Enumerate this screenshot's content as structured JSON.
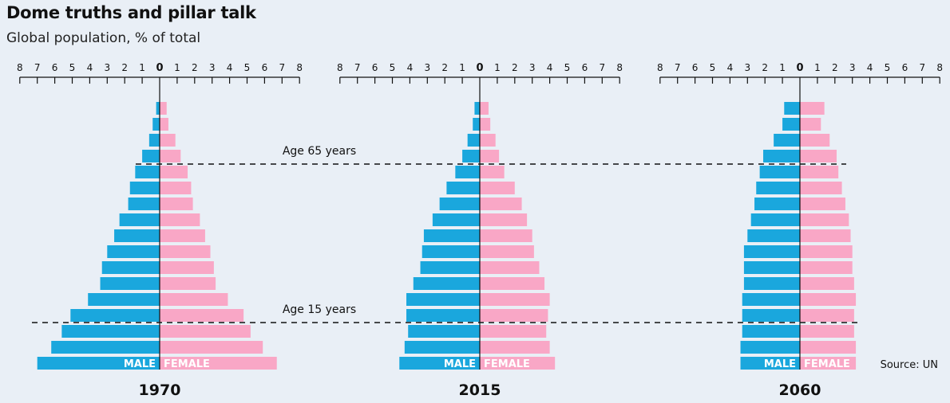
{
  "title": "Dome truths and pillar talk",
  "subtitle": "Global population, % of total",
  "source": "Source: UN",
  "annotations": [
    "Age 65 years",
    "Age 15 years"
  ],
  "colors": {
    "male": "#1aa7dd",
    "female": "#f9a7c6",
    "background": "#e9eff6"
  },
  "chart_data": [
    {
      "type": "bar",
      "orientation": "horizontal",
      "label": "1970",
      "ticks": [
        "8",
        "7",
        "6",
        "5",
        "4",
        "3",
        "2",
        "1",
        "0",
        "1",
        "2",
        "3",
        "4",
        "5",
        "6",
        "7",
        "8"
      ],
      "xlim": [
        -8,
        8
      ],
      "sex_labels": [
        "MALE",
        "FEMALE"
      ],
      "order": "top-to-bottom, oldest to youngest",
      "male": [
        0.2,
        0.4,
        0.6,
        1.0,
        1.4,
        1.7,
        1.8,
        2.3,
        2.6,
        3.0,
        3.3,
        3.4,
        4.1,
        5.1,
        5.6,
        6.2,
        7.0
      ],
      "female": [
        0.4,
        0.5,
        0.9,
        1.2,
        1.6,
        1.8,
        1.9,
        2.3,
        2.6,
        2.9,
        3.1,
        3.2,
        3.9,
        4.8,
        5.2,
        5.9,
        6.7
      ]
    },
    {
      "type": "bar",
      "orientation": "horizontal",
      "label": "2015",
      "ticks": [
        "8",
        "7",
        "6",
        "5",
        "4",
        "3",
        "2",
        "1",
        "0",
        "1",
        "2",
        "3",
        "4",
        "5",
        "6",
        "7",
        "8"
      ],
      "xlim": [
        -8,
        8
      ],
      "sex_labels": [
        "MALE",
        "FEMALE"
      ],
      "order": "top-to-bottom, oldest to youngest",
      "male": [
        0.3,
        0.4,
        0.7,
        1.0,
        1.4,
        1.9,
        2.3,
        2.7,
        3.2,
        3.3,
        3.4,
        3.8,
        4.2,
        4.2,
        4.1,
        4.3,
        4.6
      ],
      "female": [
        0.5,
        0.6,
        0.9,
        1.1,
        1.4,
        2.0,
        2.4,
        2.7,
        3.0,
        3.1,
        3.4,
        3.7,
        4.0,
        3.9,
        3.8,
        4.0,
        4.3
      ]
    },
    {
      "type": "bar",
      "orientation": "horizontal",
      "label": "2060",
      "ticks": [
        "8",
        "7",
        "6",
        "5",
        "4",
        "3",
        "2",
        "1",
        "0",
        "1",
        "2",
        "3",
        "4",
        "5",
        "6",
        "7",
        "8"
      ],
      "xlim": [
        -8,
        8
      ],
      "sex_labels": [
        "MALE",
        "FEMALE"
      ],
      "order": "top-to-bottom, oldest to youngest",
      "male": [
        0.9,
        1.0,
        1.5,
        2.1,
        2.3,
        2.5,
        2.6,
        2.8,
        3.0,
        3.2,
        3.2,
        3.2,
        3.3,
        3.3,
        3.3,
        3.4,
        3.4
      ],
      "female": [
        1.4,
        1.2,
        1.7,
        2.1,
        2.2,
        2.4,
        2.6,
        2.8,
        2.9,
        3.0,
        3.0,
        3.1,
        3.2,
        3.1,
        3.1,
        3.2,
        3.2
      ]
    }
  ]
}
